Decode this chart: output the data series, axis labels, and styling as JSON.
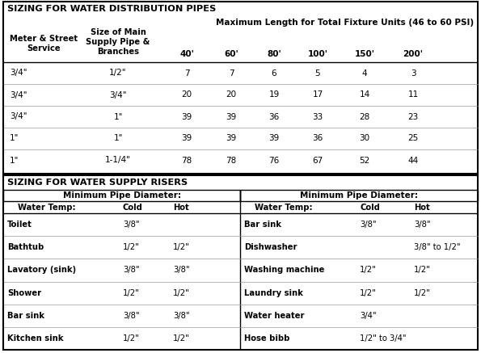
{
  "title1": "SIZING FOR WATER DISTRIBUTION PIPES",
  "subtitle": "Maximum Length for Total Fixture Units (46 to 60 PSI)",
  "dist_rows": [
    [
      "3/4\"",
      "1/2\"",
      "7",
      "7",
      "6",
      "5",
      "4",
      "3"
    ],
    [
      "3/4\"",
      "3/4\"",
      "20",
      "20",
      "19",
      "17",
      "14",
      "11"
    ],
    [
      "3/4\"",
      "1\"",
      "39",
      "39",
      "36",
      "33",
      "28",
      "23"
    ],
    [
      "1\"",
      "1\"",
      "39",
      "39",
      "39",
      "36",
      "30",
      "25"
    ],
    [
      "1\"",
      "1-1/4\"",
      "78",
      "78",
      "76",
      "67",
      "52",
      "44"
    ]
  ],
  "title2": "SIZING FOR WATER SUPPLY RISERS",
  "riser_header_left": "Minimum Pipe Diameter:",
  "riser_header_right": "Minimum Pipe Diameter:",
  "riser_left": [
    [
      "Toilet",
      "3/8\"",
      ""
    ],
    [
      "Bathtub",
      "1/2\"",
      "1/2\""
    ],
    [
      "Lavatory (sink)",
      "3/8\"",
      "3/8\""
    ],
    [
      "Shower",
      "1/2\"",
      "1/2\""
    ],
    [
      "Bar sink",
      "3/8\"",
      "3/8\""
    ],
    [
      "Kitchen sink",
      "1/2\"",
      "1/2\""
    ]
  ],
  "riser_right": [
    [
      "Bar sink",
      "3/8\"",
      "3/8\""
    ],
    [
      "Dishwasher",
      "",
      "3/8\" to 1/2\""
    ],
    [
      "Washing machine",
      "1/2\"",
      "1/2\""
    ],
    [
      "Laundry sink",
      "1/2\"",
      "1/2\""
    ],
    [
      "Water heater",
      "3/4\"",
      ""
    ],
    [
      "Hose bibb",
      "1/2\" to 3/4\"",
      ""
    ]
  ]
}
